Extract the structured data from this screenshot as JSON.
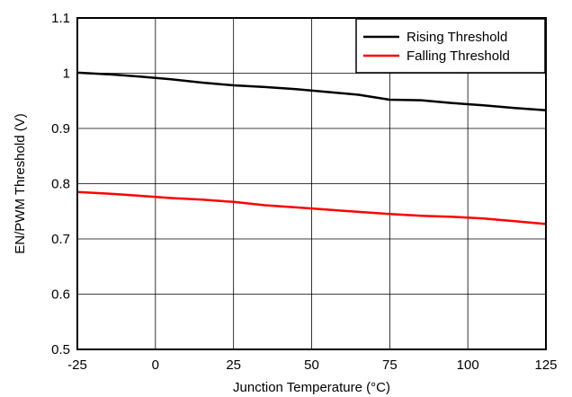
{
  "chart_data": {
    "type": "line",
    "xlabel": "Junction Temperature (°C)",
    "ylabel": "EN/PWM Threshold (V)",
    "xlim": [
      -25,
      125
    ],
    "ylim": [
      0.5,
      1.1
    ],
    "x_ticks": [
      -25,
      0,
      25,
      50,
      75,
      100,
      125
    ],
    "y_ticks": [
      0.5,
      0.6,
      0.7,
      0.8,
      0.9,
      1.0,
      1.1
    ],
    "x_tick_labels": [
      "-25",
      "0",
      "25",
      "50",
      "75",
      "100",
      "125"
    ],
    "y_tick_labels": [
      "0.5",
      "0.6",
      "0.7",
      "0.8",
      "0.9",
      "1",
      "1.1"
    ],
    "grid": true,
    "legend_position": "top-right",
    "series": [
      {
        "name": "Rising Threshold",
        "color": "#000000",
        "x": [
          -25,
          -15,
          -5,
          5,
          15,
          25,
          35,
          45,
          55,
          65,
          75,
          85,
          95,
          105,
          115,
          125
        ],
        "y": [
          1.001,
          0.998,
          0.994,
          0.989,
          0.983,
          0.978,
          0.975,
          0.971,
          0.966,
          0.961,
          0.952,
          0.951,
          0.946,
          0.942,
          0.937,
          0.933
        ]
      },
      {
        "name": "Falling Threshold",
        "color": "#ff0000",
        "x": [
          -25,
          -15,
          -5,
          5,
          15,
          25,
          35,
          45,
          55,
          65,
          75,
          85,
          95,
          105,
          115,
          125
        ],
        "y": [
          0.785,
          0.782,
          0.778,
          0.774,
          0.771,
          0.767,
          0.761,
          0.757,
          0.753,
          0.749,
          0.745,
          0.742,
          0.74,
          0.737,
          0.732,
          0.727
        ]
      }
    ]
  }
}
